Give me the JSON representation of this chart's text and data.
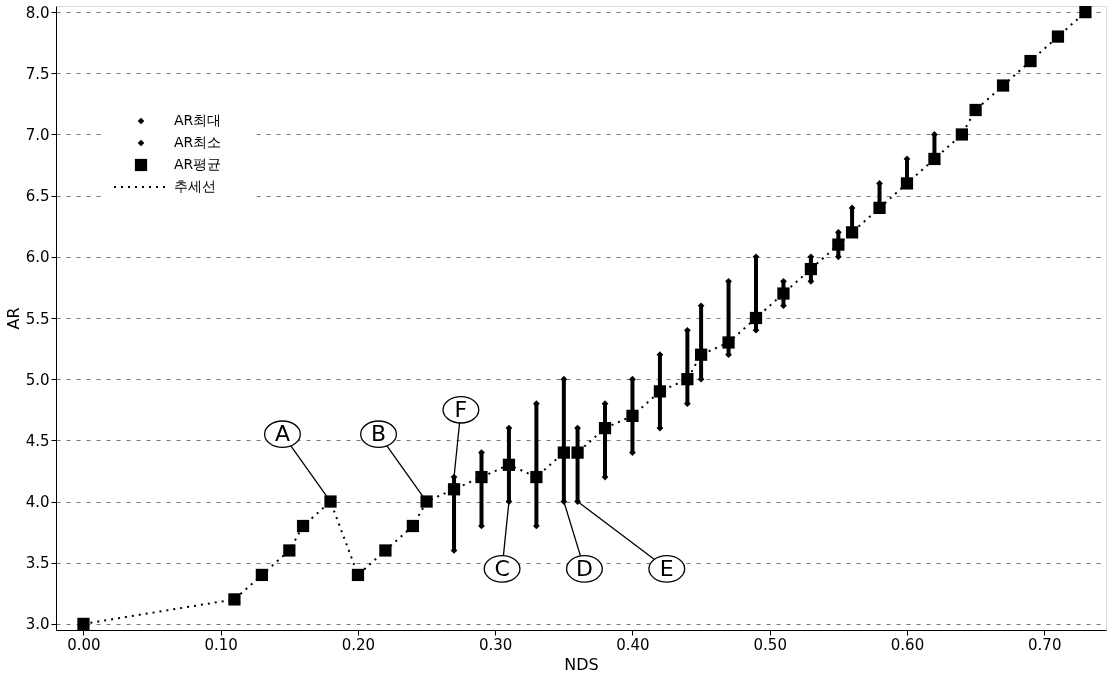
{
  "chart_data": {
    "type": "scatter",
    "xlabel": "NDS",
    "ylabel": "AR",
    "x": [
      0.0,
      0.11,
      0.13,
      0.15,
      0.16,
      0.18,
      0.2,
      0.22,
      0.24,
      0.25,
      0.27,
      0.29,
      0.31,
      0.33,
      0.35,
      0.36,
      0.38,
      0.4,
      0.42,
      0.44,
      0.45,
      0.47,
      0.49,
      0.51,
      0.53,
      0.55,
      0.56,
      0.58,
      0.6,
      0.62,
      0.64,
      0.65,
      0.67,
      0.69,
      0.71,
      0.73
    ],
    "series": [
      {
        "name": "AR최대",
        "marker": "diamond",
        "color": "#000000",
        "values": [
          null,
          null,
          null,
          null,
          null,
          null,
          null,
          null,
          null,
          null,
          4.2,
          4.4,
          4.6,
          4.8,
          5.0,
          4.6,
          4.8,
          5.0,
          5.2,
          5.4,
          5.6,
          5.8,
          6.0,
          5.8,
          6.0,
          6.2,
          6.4,
          6.6,
          6.8,
          7.0,
          null,
          null,
          null,
          null,
          null,
          null
        ]
      },
      {
        "name": "AR최소",
        "marker": "diamond",
        "color": "#000000",
        "values": [
          null,
          null,
          null,
          null,
          null,
          null,
          null,
          null,
          null,
          null,
          3.6,
          3.8,
          4.0,
          3.8,
          4.0,
          4.0,
          4.2,
          4.4,
          4.6,
          4.8,
          5.0,
          5.2,
          5.4,
          5.6,
          5.8,
          6.0,
          null,
          null,
          null,
          null,
          null,
          null,
          null,
          null,
          null,
          null
        ]
      },
      {
        "name": "AR평균",
        "marker": "square",
        "color": "#000000",
        "values": [
          3.0,
          3.2,
          3.4,
          3.6,
          3.8,
          4.0,
          3.4,
          3.6,
          3.8,
          4.0,
          4.1,
          4.2,
          4.3,
          4.2,
          4.4,
          4.4,
          4.6,
          4.7,
          4.9,
          5.0,
          5.2,
          5.3,
          5.5,
          5.7,
          5.9,
          6.1,
          6.2,
          6.4,
          6.6,
          6.8,
          7.0,
          7.2,
          7.4,
          7.6,
          7.8,
          8.0
        ],
        "errors": [
          null,
          null,
          null,
          null,
          null,
          null,
          null,
          null,
          null,
          null,
          [
            3.6,
            4.2
          ],
          [
            3.8,
            4.4
          ],
          [
            4.0,
            4.6
          ],
          [
            3.8,
            4.8
          ],
          [
            4.0,
            5.0
          ],
          [
            4.0,
            4.6
          ],
          [
            4.2,
            4.8
          ],
          [
            4.4,
            5.0
          ],
          [
            4.6,
            5.2
          ],
          [
            4.8,
            5.4
          ],
          [
            5.0,
            5.6
          ],
          [
            5.2,
            5.8
          ],
          [
            5.4,
            6.0
          ],
          [
            5.6,
            5.8
          ],
          [
            5.8,
            6.0
          ],
          [
            6.0,
            6.2
          ],
          [
            6.2,
            6.4
          ],
          [
            6.4,
            6.6
          ],
          [
            6.6,
            6.8
          ],
          [
            6.8,
            7.0
          ],
          null,
          null,
          null,
          null,
          null,
          null
        ]
      },
      {
        "name": "추세선",
        "type": "line",
        "marker": "none",
        "line_style": "dotted",
        "color": "#000000",
        "values": [
          3.0,
          3.2,
          3.4,
          3.6,
          3.8,
          4.0,
          3.4,
          3.6,
          3.8,
          4.0,
          4.1,
          4.2,
          4.3,
          4.2,
          4.4,
          4.4,
          4.6,
          4.7,
          4.9,
          5.0,
          5.2,
          5.3,
          5.5,
          5.7,
          5.9,
          6.1,
          6.2,
          6.4,
          6.6,
          6.8,
          7.0,
          7.2,
          7.4,
          7.6,
          7.8,
          8.0
        ]
      }
    ],
    "xlim": [
      -0.02,
      0.745
    ],
    "ylim": [
      2.95,
      8.05
    ],
    "xticks": [
      {
        "value": 0,
        "label": "0.00"
      },
      {
        "value": 0.1,
        "label": "0.10"
      },
      {
        "value": 0.2,
        "label": "0.20"
      },
      {
        "value": 0.3,
        "label": "0.30"
      },
      {
        "value": 0.4,
        "label": "0.40"
      },
      {
        "value": 0.5,
        "label": "0.50"
      },
      {
        "value": 0.6,
        "label": "0.60"
      },
      {
        "value": 0.7,
        "label": "0.70"
      }
    ],
    "yticks": [
      {
        "value": 3,
        "label": "3.0"
      },
      {
        "value": 3.5,
        "label": "3.5"
      },
      {
        "value": 4,
        "label": "4.0"
      },
      {
        "value": 4.5,
        "label": "4.5"
      },
      {
        "value": 5,
        "label": "5.0"
      },
      {
        "value": 5.5,
        "label": "5.5"
      },
      {
        "value": 6,
        "label": "6.0"
      },
      {
        "value": 6.5,
        "label": "6.5"
      },
      {
        "value": 7,
        "label": "7.0"
      },
      {
        "value": 7.5,
        "label": "7.5"
      },
      {
        "value": 8,
        "label": "8.0"
      }
    ],
    "grid": "y",
    "legend": "top left",
    "annotations": [
      {
        "text": "A",
        "x": 0.18,
        "y": 4.0
      },
      {
        "text": "B",
        "x": 0.25,
        "y": 4.0
      },
      {
        "text": "F",
        "x": 0.27,
        "y": 4.2
      },
      {
        "text": "C",
        "x": 0.31,
        "y": 4.0
      },
      {
        "text": "D",
        "x": 0.35,
        "y": 4.0
      },
      {
        "text": "E",
        "x": 0.36,
        "y": 4.0
      }
    ]
  }
}
